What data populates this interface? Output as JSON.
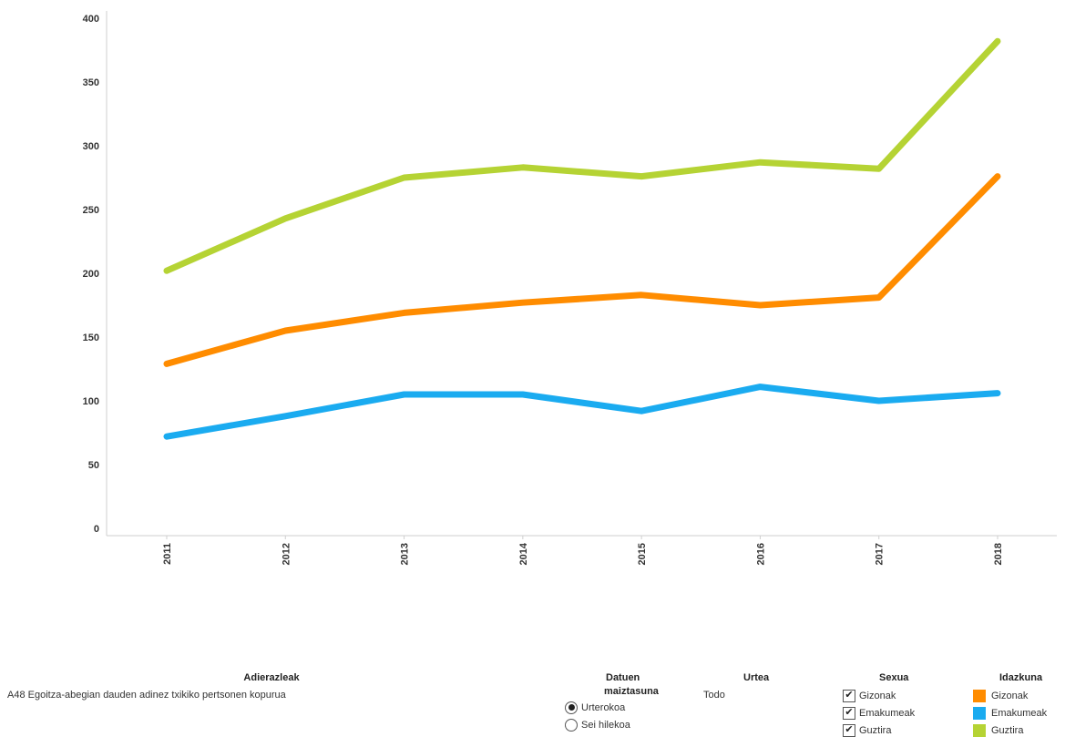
{
  "chart_data": {
    "type": "line",
    "categories": [
      "2011",
      "2012",
      "2013",
      "2014",
      "2015",
      "2016",
      "2017",
      "2018"
    ],
    "series": [
      {
        "name": "Gizonak",
        "color": "#ff8c00",
        "values": [
          129,
          155,
          169,
          177,
          183,
          175,
          181,
          276
        ]
      },
      {
        "name": "Emakumeak",
        "color": "#1aabf0",
        "values": [
          72,
          88,
          105,
          105,
          92,
          111,
          100,
          106
        ]
      },
      {
        "name": "Guztira",
        "color": "#b5d334",
        "values": [
          202,
          243,
          275,
          283,
          276,
          287,
          282,
          382
        ]
      }
    ],
    "ylim": [
      0,
      400
    ],
    "yticks": [
      "0",
      "50",
      "100",
      "150",
      "200",
      "250",
      "300",
      "350",
      "400"
    ],
    "grid": false
  },
  "filters": {
    "adierazleak": {
      "title": "Adierazleak",
      "value": "A48 Egoitza-abegian dauden adinez txikiko pertsonen kopurua"
    },
    "datuen_maiztasuna": {
      "title_line1": "Datuen",
      "title_line2": "maiztasuna",
      "options": [
        {
          "label": "Urterokoa",
          "selected": true
        },
        {
          "label": "Sei hilekoa",
          "selected": false
        }
      ]
    },
    "urtea": {
      "title": "Urtea",
      "value": "Todo"
    },
    "sexua": {
      "title": "Sexua",
      "options": [
        {
          "label": "Gizonak",
          "checked": true
        },
        {
          "label": "Emakumeak",
          "checked": true
        },
        {
          "label": "Guztira",
          "checked": true
        }
      ]
    },
    "idazkuna": {
      "title": "Idazkuna",
      "items": [
        {
          "label": "Gizonak",
          "color": "#ff8c00"
        },
        {
          "label": "Emakumeak",
          "color": "#1aabf0"
        },
        {
          "label": "Guztira",
          "color": "#b5d334"
        }
      ]
    }
  }
}
